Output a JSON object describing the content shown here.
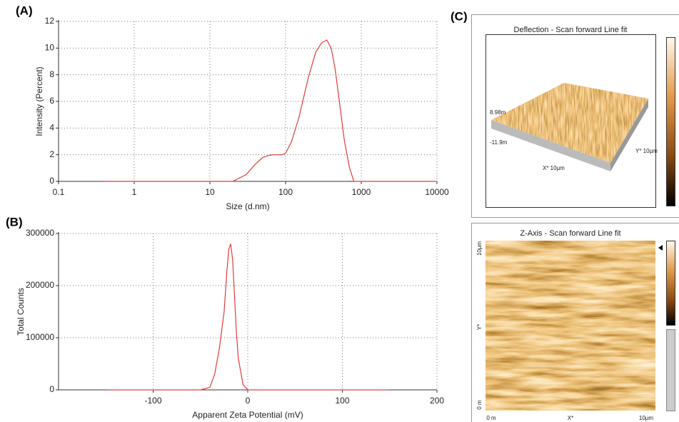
{
  "panels": {
    "a": "(A)",
    "b": "(B)",
    "c": "(C)"
  },
  "chart_data": [
    {
      "type": "line",
      "xlabel": "Size (d.nm)",
      "ylabel": "Intensity (Percent)",
      "x": [
        0.4,
        1,
        10,
        20,
        30,
        40,
        50,
        60,
        70,
        80,
        90,
        100,
        120,
        150,
        200,
        250,
        300,
        350,
        400,
        450,
        500,
        600,
        700,
        800,
        900,
        1000,
        10000
      ],
      "values": [
        0,
        0,
        0,
        0,
        0.5,
        1.3,
        1.8,
        1.95,
        2,
        2,
        2,
        2.1,
        3,
        4.8,
        7.8,
        9.7,
        10.4,
        10.6,
        10,
        8.5,
        6.5,
        3,
        1,
        0,
        0,
        0,
        0
      ],
      "color": "#e03c3c",
      "xscale": "log",
      "xlim": [
        0.1,
        10000
      ],
      "xticks": [
        0.1,
        1,
        10,
        100,
        1000,
        10000
      ],
      "ylim": [
        0,
        12
      ],
      "yticks": [
        0,
        2,
        4,
        6,
        8,
        10,
        12
      ],
      "grid": true
    },
    {
      "type": "line",
      "xlabel": "Apparent Zeta Potential (mV)",
      "ylabel": "Total Counts",
      "x": [
        -150,
        -50,
        -40,
        -35,
        -30,
        -25,
        -22,
        -20,
        -18,
        -16,
        -14,
        -12,
        -10,
        -5,
        0,
        150
      ],
      "values": [
        0,
        0,
        5000,
        30000,
        80000,
        150000,
        230000,
        270000,
        280000,
        250000,
        180000,
        110000,
        60000,
        10000,
        0,
        0
      ],
      "color": "#e03c3c",
      "xscale": "linear",
      "xlim": [
        -200,
        200
      ],
      "xticks": [
        -100,
        0,
        100,
        200
      ],
      "ylim": [
        0,
        300000
      ],
      "yticks": [
        0,
        100000,
        200000,
        300000
      ],
      "grid": true
    }
  ],
  "afm": {
    "top": {
      "title": "Deflection - Scan forward   Line fit",
      "z_max": "8.98m",
      "z_min": "-11.9m",
      "x_axis": "X* 10µm",
      "y_axis": "Y* 10µm"
    },
    "bottom": {
      "title": "Z-Axis - Scan forward   Line fit",
      "y_max": "10µm",
      "y_label": "Y*",
      "y_min": "0 m",
      "x_min": "0 m",
      "x_label": "X*",
      "x_max": "10µm"
    }
  }
}
